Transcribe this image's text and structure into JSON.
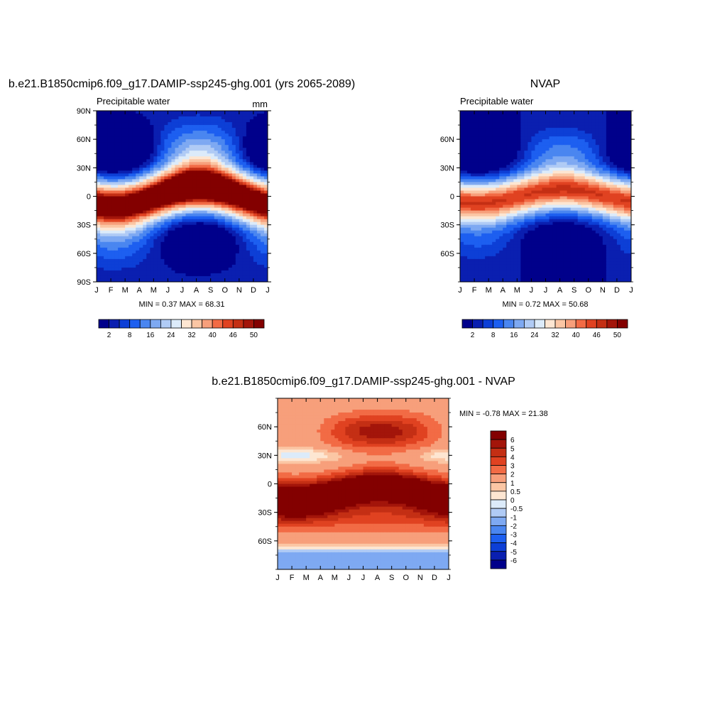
{
  "chart_data": [
    {
      "type": "heatmap",
      "title": "b.e21.B1850cmip6.f09_g17.DAMIP-ssp245-ghg.001 (yrs 2065-2089)",
      "left_label": "Precipitable water",
      "units": "mm",
      "x_tick_labels": [
        "J",
        "F",
        "M",
        "A",
        "M",
        "J",
        "J",
        "A",
        "S",
        "O",
        "N",
        "D",
        "J"
      ],
      "y_tick_labels": [
        "90N",
        "60N",
        "30N",
        "0",
        "30S",
        "60S",
        "90S"
      ],
      "ylim": [
        -90,
        90
      ],
      "stats": "MIN =   0.37 MAX =  68.31",
      "colorbar": {
        "levels": [
          2,
          5,
          8,
          12,
          16,
          20,
          24,
          28,
          32,
          36,
          40,
          43,
          46,
          48,
          50
        ],
        "labels": [
          "2",
          "8",
          "16",
          "24",
          "32",
          "40",
          "46",
          "50"
        ]
      }
    },
    {
      "type": "heatmap",
      "title": "NVAP",
      "left_label": "Precipitable water",
      "x_tick_labels": [
        "J",
        "F",
        "M",
        "A",
        "M",
        "J",
        "J",
        "A",
        "S",
        "O",
        "N",
        "D",
        "J"
      ],
      "y_tick_labels": [
        "60N",
        "30N",
        "0",
        "30S",
        "60S"
      ],
      "ylim": [
        -90,
        90
      ],
      "stats": "MIN =   0.72 MAX =  50.68",
      "colorbar": {
        "levels": [
          2,
          5,
          8,
          12,
          16,
          20,
          24,
          28,
          32,
          36,
          40,
          43,
          46,
          48,
          50
        ],
        "labels": [
          "2",
          "8",
          "16",
          "24",
          "32",
          "40",
          "46",
          "50"
        ]
      }
    },
    {
      "type": "heatmap",
      "title": "b.e21.B1850cmip6.f09_g17.DAMIP-ssp245-ghg.001 - NVAP",
      "x_tick_labels": [
        "J",
        "F",
        "M",
        "A",
        "M",
        "J",
        "J",
        "A",
        "S",
        "O",
        "N",
        "D",
        "J"
      ],
      "y_tick_labels": [
        "60N",
        "30N",
        "0",
        "30S",
        "60S"
      ],
      "ylim": [
        -90,
        90
      ],
      "stats": "MIN =  -0.78 MAX =  21.38",
      "colorbar": {
        "levels": [
          -6,
          -5,
          -4,
          -3,
          -2,
          -1,
          -0.5,
          0,
          0.5,
          1,
          2,
          3,
          4,
          5,
          6
        ],
        "labels": [
          "6",
          "5",
          "4",
          "3",
          "2",
          "1",
          "0.5",
          "0",
          "-0.5",
          "-1",
          "-2",
          "-3",
          "-4",
          "-5",
          "-6"
        ]
      }
    }
  ],
  "colors": {
    "palette": [
      "#00008b",
      "#0a1fb0",
      "#0d3fd6",
      "#1d5ff0",
      "#4a86f0",
      "#7ea9f2",
      "#b0cbf5",
      "#dcebfa",
      "#fde6d2",
      "#fbc6a4",
      "#f79f7b",
      "#f26b45",
      "#e04221",
      "#c42f14",
      "#a3150a",
      "#830000"
    ]
  }
}
